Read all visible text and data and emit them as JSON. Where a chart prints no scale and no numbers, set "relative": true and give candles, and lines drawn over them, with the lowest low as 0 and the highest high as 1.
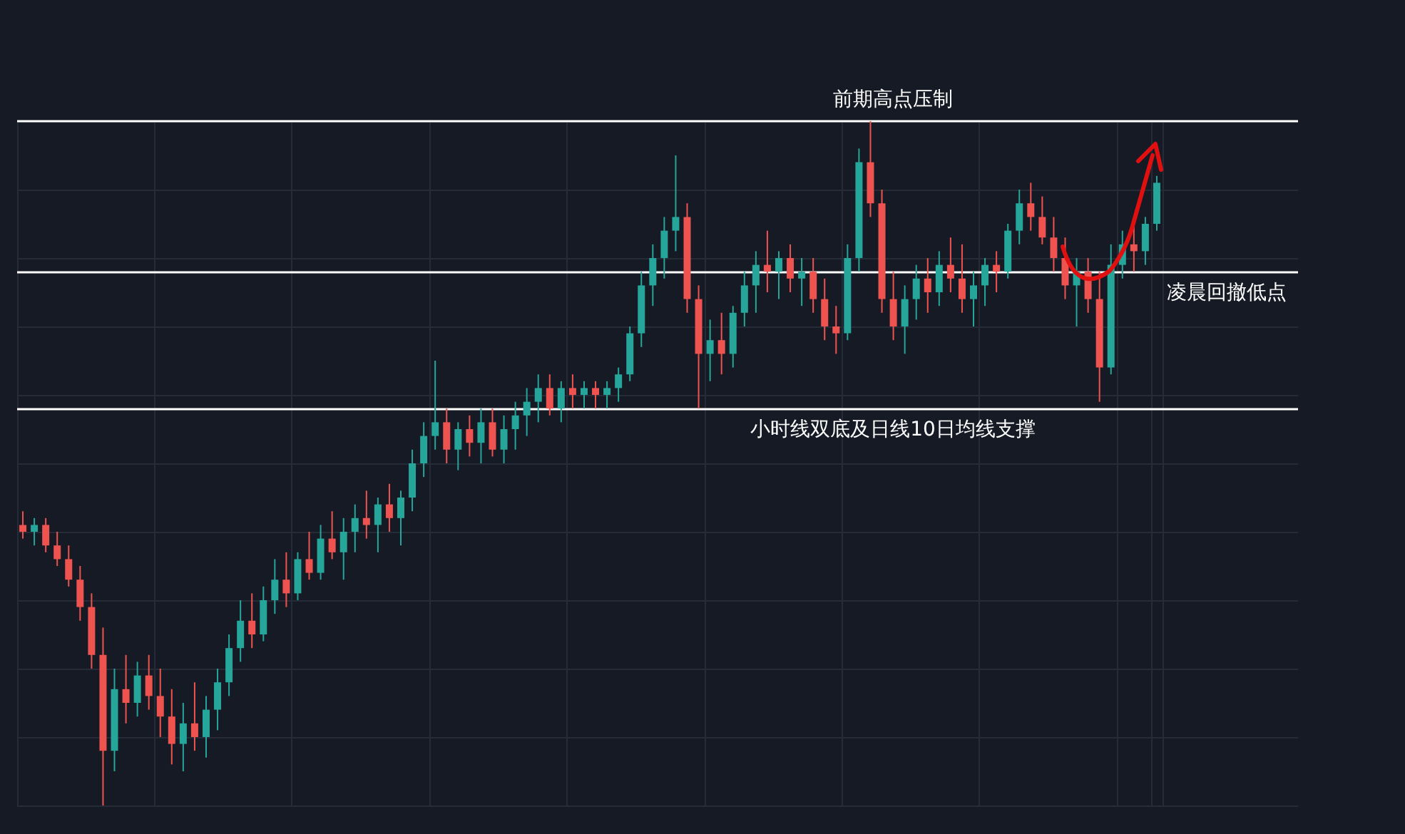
{
  "chart_data": {
    "type": "candlestick",
    "relative": true,
    "grid": true,
    "categories": [
      null,
      null,
      null,
      null,
      null,
      null,
      null,
      null,
      null,
      null,
      null,
      null,
      null,
      null,
      null,
      null,
      null,
      null,
      null,
      null,
      null,
      null,
      null,
      null,
      null,
      null,
      null,
      null,
      null,
      null,
      null,
      null,
      null,
      null,
      null,
      null,
      null,
      null,
      null,
      null,
      null,
      null,
      null,
      null,
      null,
      null,
      null,
      null,
      null,
      null,
      null,
      null,
      null,
      null,
      null,
      null,
      null,
      null,
      null,
      null,
      null,
      null,
      null,
      null,
      null,
      null,
      null,
      null,
      null,
      null,
      null,
      null,
      null,
      null,
      null,
      null,
      null,
      null,
      null,
      null,
      null,
      null,
      null,
      null,
      null,
      null,
      null,
      null,
      null,
      null,
      null,
      null,
      null,
      null,
      null,
      null,
      null,
      null,
      null,
      null
    ],
    "ohlc": [
      [
        0.41,
        0.43,
        0.39,
        0.4
      ],
      [
        0.4,
        0.42,
        0.38,
        0.41
      ],
      [
        0.41,
        0.42,
        0.37,
        0.38
      ],
      [
        0.38,
        0.4,
        0.35,
        0.36
      ],
      [
        0.36,
        0.38,
        0.32,
        0.33
      ],
      [
        0.33,
        0.35,
        0.27,
        0.29
      ],
      [
        0.29,
        0.31,
        0.2,
        0.22
      ],
      [
        0.22,
        0.26,
        0.0,
        0.08
      ],
      [
        0.08,
        0.2,
        0.05,
        0.17
      ],
      [
        0.17,
        0.22,
        0.12,
        0.15
      ],
      [
        0.15,
        0.21,
        0.13,
        0.19
      ],
      [
        0.19,
        0.22,
        0.14,
        0.16
      ],
      [
        0.16,
        0.2,
        0.1,
        0.13
      ],
      [
        0.13,
        0.17,
        0.06,
        0.09
      ],
      [
        0.09,
        0.15,
        0.05,
        0.12
      ],
      [
        0.12,
        0.18,
        0.08,
        0.1
      ],
      [
        0.1,
        0.16,
        0.07,
        0.14
      ],
      [
        0.14,
        0.2,
        0.11,
        0.18
      ],
      [
        0.18,
        0.25,
        0.16,
        0.23
      ],
      [
        0.23,
        0.3,
        0.21,
        0.27
      ],
      [
        0.27,
        0.31,
        0.23,
        0.25
      ],
      [
        0.25,
        0.32,
        0.24,
        0.3
      ],
      [
        0.3,
        0.36,
        0.28,
        0.33
      ],
      [
        0.33,
        0.37,
        0.29,
        0.31
      ],
      [
        0.31,
        0.37,
        0.3,
        0.36
      ],
      [
        0.36,
        0.4,
        0.33,
        0.34
      ],
      [
        0.34,
        0.41,
        0.33,
        0.39
      ],
      [
        0.39,
        0.43,
        0.36,
        0.37
      ],
      [
        0.37,
        0.42,
        0.33,
        0.4
      ],
      [
        0.4,
        0.44,
        0.37,
        0.42
      ],
      [
        0.42,
        0.46,
        0.39,
        0.41
      ],
      [
        0.41,
        0.45,
        0.37,
        0.44
      ],
      [
        0.44,
        0.47,
        0.4,
        0.42
      ],
      [
        0.42,
        0.46,
        0.38,
        0.45
      ],
      [
        0.45,
        0.52,
        0.43,
        0.5
      ],
      [
        0.5,
        0.56,
        0.48,
        0.54
      ],
      [
        0.54,
        0.65,
        0.52,
        0.56
      ],
      [
        0.56,
        0.58,
        0.5,
        0.52
      ],
      [
        0.52,
        0.56,
        0.49,
        0.55
      ],
      [
        0.55,
        0.57,
        0.51,
        0.53
      ],
      [
        0.53,
        0.58,
        0.5,
        0.56
      ],
      [
        0.56,
        0.58,
        0.51,
        0.52
      ],
      [
        0.52,
        0.57,
        0.5,
        0.55
      ],
      [
        0.55,
        0.59,
        0.52,
        0.57
      ],
      [
        0.57,
        0.61,
        0.54,
        0.59
      ],
      [
        0.59,
        0.63,
        0.56,
        0.61
      ],
      [
        0.61,
        0.63,
        0.57,
        0.58
      ],
      [
        0.58,
        0.62,
        0.56,
        0.61
      ],
      [
        0.61,
        0.63,
        0.58,
        0.6
      ],
      [
        0.6,
        0.62,
        0.58,
        0.61
      ],
      [
        0.61,
        0.62,
        0.58,
        0.6
      ],
      [
        0.6,
        0.62,
        0.58,
        0.61
      ],
      [
        0.61,
        0.64,
        0.59,
        0.63
      ],
      [
        0.63,
        0.7,
        0.62,
        0.69
      ],
      [
        0.69,
        0.78,
        0.67,
        0.76
      ],
      [
        0.76,
        0.82,
        0.73,
        0.8
      ],
      [
        0.8,
        0.86,
        0.77,
        0.84
      ],
      [
        0.84,
        0.95,
        0.81,
        0.86
      ],
      [
        0.86,
        0.88,
        0.72,
        0.74
      ],
      [
        0.74,
        0.76,
        0.58,
        0.66
      ],
      [
        0.66,
        0.71,
        0.62,
        0.68
      ],
      [
        0.68,
        0.72,
        0.63,
        0.66
      ],
      [
        0.66,
        0.73,
        0.64,
        0.72
      ],
      [
        0.72,
        0.78,
        0.7,
        0.76
      ],
      [
        0.76,
        0.81,
        0.72,
        0.79
      ],
      [
        0.79,
        0.84,
        0.75,
        0.78
      ],
      [
        0.78,
        0.81,
        0.74,
        0.8
      ],
      [
        0.8,
        0.82,
        0.75,
        0.77
      ],
      [
        0.77,
        0.8,
        0.73,
        0.78
      ],
      [
        0.78,
        0.8,
        0.72,
        0.74
      ],
      [
        0.74,
        0.77,
        0.68,
        0.7
      ],
      [
        0.7,
        0.73,
        0.66,
        0.69
      ],
      [
        0.69,
        0.82,
        0.68,
        0.8
      ],
      [
        0.8,
        0.96,
        0.78,
        0.94
      ],
      [
        0.94,
        1.0,
        0.86,
        0.88
      ],
      [
        0.88,
        0.9,
        0.72,
        0.74
      ],
      [
        0.74,
        0.78,
        0.68,
        0.7
      ],
      [
        0.7,
        0.76,
        0.66,
        0.74
      ],
      [
        0.74,
        0.79,
        0.71,
        0.77
      ],
      [
        0.77,
        0.8,
        0.72,
        0.75
      ],
      [
        0.75,
        0.81,
        0.73,
        0.79
      ],
      [
        0.79,
        0.83,
        0.75,
        0.77
      ],
      [
        0.77,
        0.82,
        0.72,
        0.74
      ],
      [
        0.74,
        0.78,
        0.7,
        0.76
      ],
      [
        0.76,
        0.8,
        0.73,
        0.79
      ],
      [
        0.79,
        0.81,
        0.75,
        0.78
      ],
      [
        0.78,
        0.85,
        0.77,
        0.84
      ],
      [
        0.84,
        0.9,
        0.82,
        0.88
      ],
      [
        0.88,
        0.91,
        0.84,
        0.86
      ],
      [
        0.86,
        0.89,
        0.82,
        0.83
      ],
      [
        0.83,
        0.86,
        0.78,
        0.8
      ],
      [
        0.8,
        0.83,
        0.74,
        0.76
      ],
      [
        0.76,
        0.8,
        0.7,
        0.78
      ],
      [
        0.78,
        0.8,
        0.72,
        0.74
      ],
      [
        0.74,
        0.78,
        0.59,
        0.64
      ],
      [
        0.64,
        0.82,
        0.63,
        0.79
      ],
      [
        0.79,
        0.84,
        0.77,
        0.82
      ],
      [
        0.82,
        0.85,
        0.78,
        0.81
      ],
      [
        0.81,
        0.86,
        0.79,
        0.85
      ],
      [
        0.85,
        0.92,
        0.84,
        0.91
      ]
    ],
    "ref_lines": [
      {
        "axis": "y",
        "value": 1.0,
        "label": "前期高点压制",
        "color": "#ffffff"
      },
      {
        "axis": "y",
        "value": 0.78,
        "label": "凌晨回撤低点",
        "color": "#ffffff"
      },
      {
        "axis": "y",
        "value": 0.58,
        "label": "小时线双底及日线10日均线支撑",
        "color": "#ffffff"
      }
    ]
  }
}
